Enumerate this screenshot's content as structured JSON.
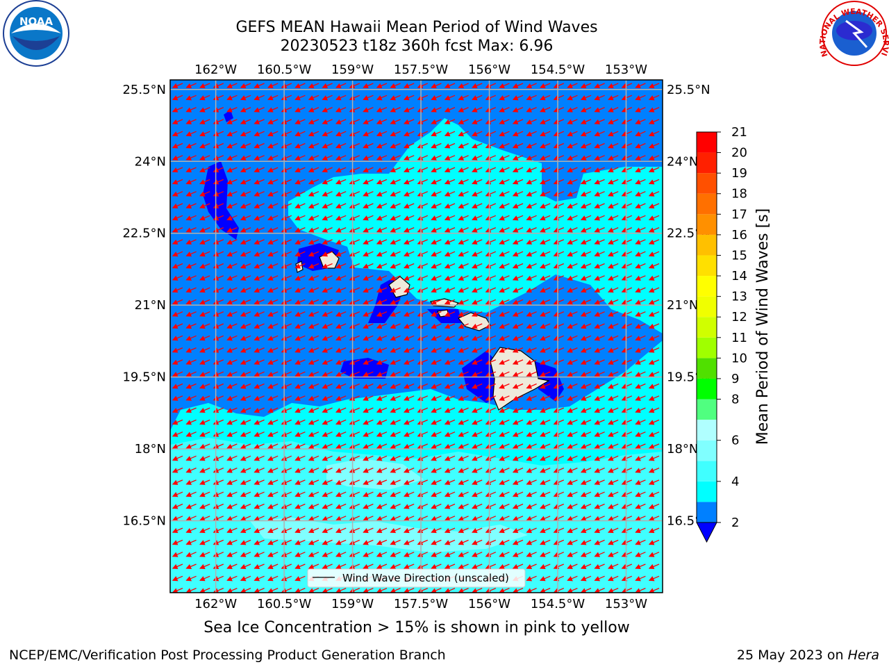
{
  "title_line1": "GEFS MEAN Hawaii Mean Period of Wind Waves",
  "title_line2": "20230523 t18z 360h fcst   Max: 6.96",
  "lon_ticks": [
    {
      "value": -162.0,
      "label": "162°W"
    },
    {
      "value": -160.5,
      "label": "160.5°W"
    },
    {
      "value": -159.0,
      "label": "159°W"
    },
    {
      "value": -157.5,
      "label": "157.5°W"
    },
    {
      "value": -156.0,
      "label": "156°W"
    },
    {
      "value": -154.5,
      "label": "154.5°W"
    },
    {
      "value": -153.0,
      "label": "153°W"
    }
  ],
  "lat_ticks": [
    {
      "value": 25.5,
      "label": "25.5°N"
    },
    {
      "value": 24.0,
      "label": "24°N"
    },
    {
      "value": 22.5,
      "label": "22.5°N"
    },
    {
      "value": 21.0,
      "label": "21°N"
    },
    {
      "value": 19.5,
      "label": "19.5°N"
    },
    {
      "value": 18.0,
      "label": "18°N"
    },
    {
      "value": 16.5,
      "label": "16.5°N"
    }
  ],
  "extent": {
    "lon_min": -163.0,
    "lon_max": -152.2,
    "lat_min": 15.0,
    "lat_max": 25.7
  },
  "legend_label": "Wind Wave Direction (unscaled)",
  "colorbar": {
    "label": "Mean Period of Wind Waves [s]",
    "levels": [
      2,
      3,
      4,
      5,
      6,
      7,
      8,
      9,
      10,
      11,
      12,
      13,
      14,
      15,
      16,
      17,
      18,
      19,
      20,
      21
    ],
    "tick_labels": [
      "2",
      "4",
      "6",
      "8",
      "9",
      "10",
      "11",
      "12",
      "13",
      "14",
      "15",
      "16",
      "17",
      "18",
      "19",
      "20",
      "21"
    ],
    "colors": [
      "#0080ff",
      "#00ffff",
      "#40ffff",
      "#80ffff",
      "#b0ffff",
      "#50ff80",
      "#00ff00",
      "#50e000",
      "#a0ff00",
      "#d0ff00",
      "#f0ff00",
      "#ffff00",
      "#ffe000",
      "#ffc000",
      "#ff9000",
      "#ff7000",
      "#ff5000",
      "#ff2000",
      "#ff0000"
    ],
    "under_color": "#0000ff"
  },
  "map_colors": {
    "land": "#eeeadb",
    "arrow": "#ff0000",
    "grid": "#b0b0b0"
  },
  "subnote": "Sea Ice Concentration > 15% is shown in pink to yellow",
  "footer_left": "NCEP/EMC/Verification Post Processing Product Generation Branch",
  "footer_right_prefix": "25 May 2023 on ",
  "footer_right_host": "Hera",
  "logos": {
    "left_text": "NOAA",
    "right_text": "NATIONAL WEATHER SERVICE"
  }
}
